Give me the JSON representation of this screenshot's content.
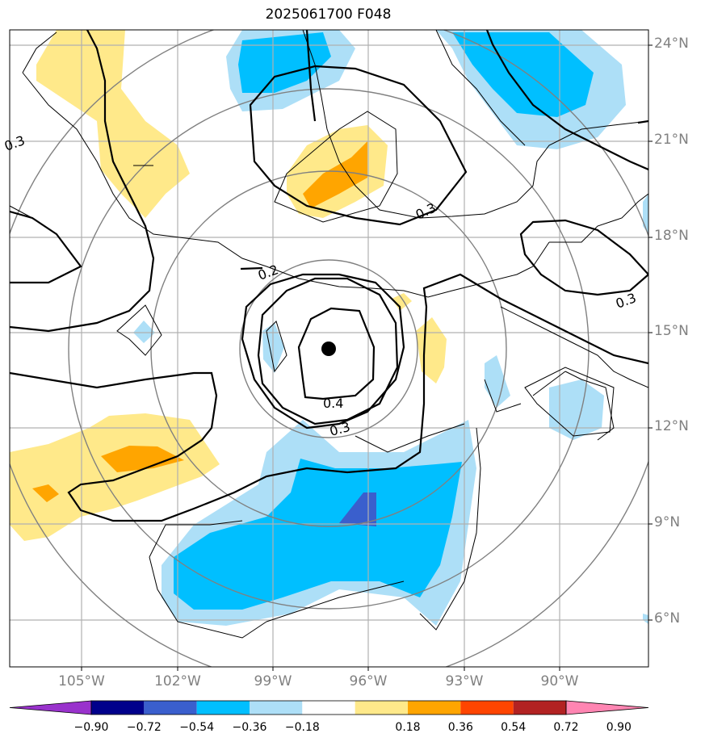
{
  "title": "2025061700 F048",
  "lat_labels": [
    "24°N",
    "21°N",
    "18°N",
    "15°N",
    "12°N",
    "9°N",
    "6°N"
  ],
  "lon_labels": [
    "105°W",
    "102°W",
    "99°W",
    "96°W",
    "93°W",
    "90°W"
  ],
  "contour_labels": [
    "0.3",
    "0.2",
    "0.3",
    "0.4",
    "0.3",
    "0.3"
  ],
  "colorbar": {
    "tick_labels": [
      "−0.90",
      "−0.72",
      "−0.54",
      "−0.36",
      "−0.18",
      "0.18",
      "0.36",
      "0.54",
      "0.72",
      "0.90"
    ],
    "colors": [
      "#9932CC",
      "#00008B",
      "#3A5FCD",
      "#00BFFF",
      "#ADDFF7",
      "#FFFFFF",
      "#FFE98A",
      "#FFA500",
      "#FF4500",
      "#B22222",
      "#FF85B2"
    ]
  },
  "fill_colors": {
    "light_blue": "#ADDFF7",
    "blue": "#00BFFF",
    "dark_blue": "#3A5FCD",
    "light_yellow": "#FFE98A",
    "orange": "#FFA500"
  },
  "storm_marker": "storm-center-dot"
}
